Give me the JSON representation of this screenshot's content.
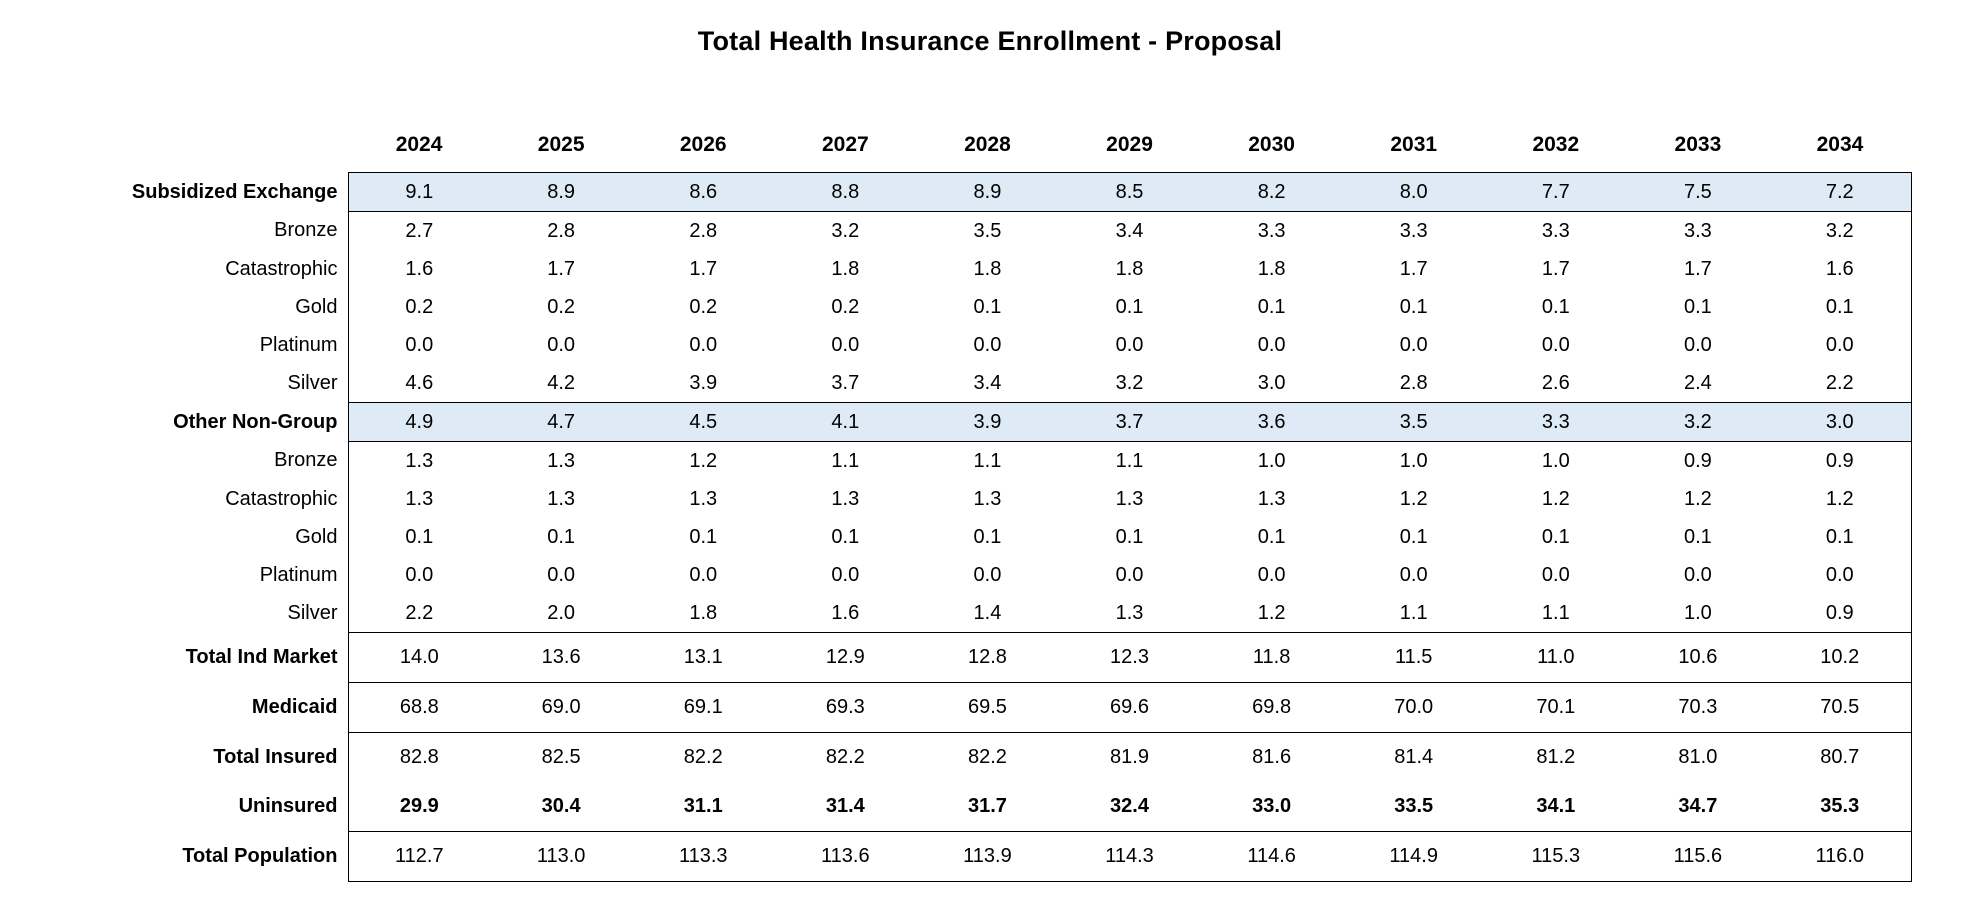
{
  "title": "Total Health Insurance Enrollment - Proposal",
  "colors": {
    "section_fill": "#DEEAF6",
    "border_color": "#000000",
    "text_color": "#000000"
  },
  "chart_data": {
    "type": "table",
    "title": "Total Health Insurance Enrollment - Proposal",
    "columns": [
      "2024",
      "2025",
      "2026",
      "2027",
      "2028",
      "2029",
      "2030",
      "2031",
      "2032",
      "2033",
      "2034"
    ],
    "rows": [
      {
        "label": "Subsidized Exchange",
        "level": "section",
        "highlighted": true,
        "values": [
          "9.1",
          "8.9",
          "8.6",
          "8.8",
          "8.9",
          "8.5",
          "8.2",
          "8.0",
          "7.7",
          "7.5",
          "7.2"
        ]
      },
      {
        "label": "Bronze",
        "level": "detail",
        "values": [
          "2.7",
          "2.8",
          "2.8",
          "3.2",
          "3.5",
          "3.4",
          "3.3",
          "3.3",
          "3.3",
          "3.3",
          "3.2"
        ]
      },
      {
        "label": "Catastrophic",
        "level": "detail",
        "values": [
          "1.6",
          "1.7",
          "1.7",
          "1.8",
          "1.8",
          "1.8",
          "1.8",
          "1.7",
          "1.7",
          "1.7",
          "1.6"
        ]
      },
      {
        "label": "Gold",
        "level": "detail",
        "values": [
          "0.2",
          "0.2",
          "0.2",
          "0.2",
          "0.1",
          "0.1",
          "0.1",
          "0.1",
          "0.1",
          "0.1",
          "0.1"
        ]
      },
      {
        "label": "Platinum",
        "level": "detail",
        "values": [
          "0.0",
          "0.0",
          "0.0",
          "0.0",
          "0.0",
          "0.0",
          "0.0",
          "0.0",
          "0.0",
          "0.0",
          "0.0"
        ]
      },
      {
        "label": "Silver",
        "level": "detail",
        "values": [
          "4.6",
          "4.2",
          "3.9",
          "3.7",
          "3.4",
          "3.2",
          "3.0",
          "2.8",
          "2.6",
          "2.4",
          "2.2"
        ]
      },
      {
        "label": "Other Non-Group",
        "level": "section",
        "highlighted": true,
        "values": [
          "4.9",
          "4.7",
          "4.5",
          "4.1",
          "3.9",
          "3.7",
          "3.6",
          "3.5",
          "3.3",
          "3.2",
          "3.0"
        ]
      },
      {
        "label": "Bronze",
        "level": "detail",
        "values": [
          "1.3",
          "1.3",
          "1.2",
          "1.1",
          "1.1",
          "1.1",
          "1.0",
          "1.0",
          "1.0",
          "0.9",
          "0.9"
        ]
      },
      {
        "label": "Catastrophic",
        "level": "detail",
        "values": [
          "1.3",
          "1.3",
          "1.3",
          "1.3",
          "1.3",
          "1.3",
          "1.3",
          "1.2",
          "1.2",
          "1.2",
          "1.2"
        ]
      },
      {
        "label": "Gold",
        "level": "detail",
        "values": [
          "0.1",
          "0.1",
          "0.1",
          "0.1",
          "0.1",
          "0.1",
          "0.1",
          "0.1",
          "0.1",
          "0.1",
          "0.1"
        ]
      },
      {
        "label": "Platinum",
        "level": "detail",
        "values": [
          "0.0",
          "0.0",
          "0.0",
          "0.0",
          "0.0",
          "0.0",
          "0.0",
          "0.0",
          "0.0",
          "0.0",
          "0.0"
        ]
      },
      {
        "label": "Silver",
        "level": "detail",
        "values": [
          "2.2",
          "2.0",
          "1.8",
          "1.6",
          "1.4",
          "1.3",
          "1.2",
          "1.1",
          "1.1",
          "1.0",
          "0.9"
        ]
      },
      {
        "label": "Total Ind Market",
        "level": "total",
        "top_divider": true,
        "values": [
          "14.0",
          "13.6",
          "13.1",
          "12.9",
          "12.8",
          "12.3",
          "11.8",
          "11.5",
          "11.0",
          "10.6",
          "10.2"
        ]
      },
      {
        "label": "Medicaid",
        "level": "total",
        "values": [
          "68.8",
          "69.0",
          "69.1",
          "69.3",
          "69.5",
          "69.6",
          "69.8",
          "70.0",
          "70.1",
          "70.3",
          "70.5"
        ]
      },
      {
        "label": "Total Insured",
        "level": "total",
        "no_divider_below": true,
        "values": [
          "82.8",
          "82.5",
          "82.2",
          "82.2",
          "82.2",
          "81.9",
          "81.6",
          "81.4",
          "81.2",
          "81.0",
          "80.7"
        ]
      },
      {
        "label": "Uninsured",
        "level": "total",
        "values_bold": true,
        "values": [
          "29.9",
          "30.4",
          "31.1",
          "31.4",
          "31.7",
          "32.4",
          "33.0",
          "33.5",
          "34.1",
          "34.7",
          "35.3"
        ]
      },
      {
        "label": "Total Population",
        "level": "total",
        "values": [
          "112.7",
          "113.0",
          "113.3",
          "113.6",
          "113.9",
          "114.3",
          "114.6",
          "114.9",
          "115.3",
          "115.6",
          "116.0"
        ]
      }
    ]
  }
}
